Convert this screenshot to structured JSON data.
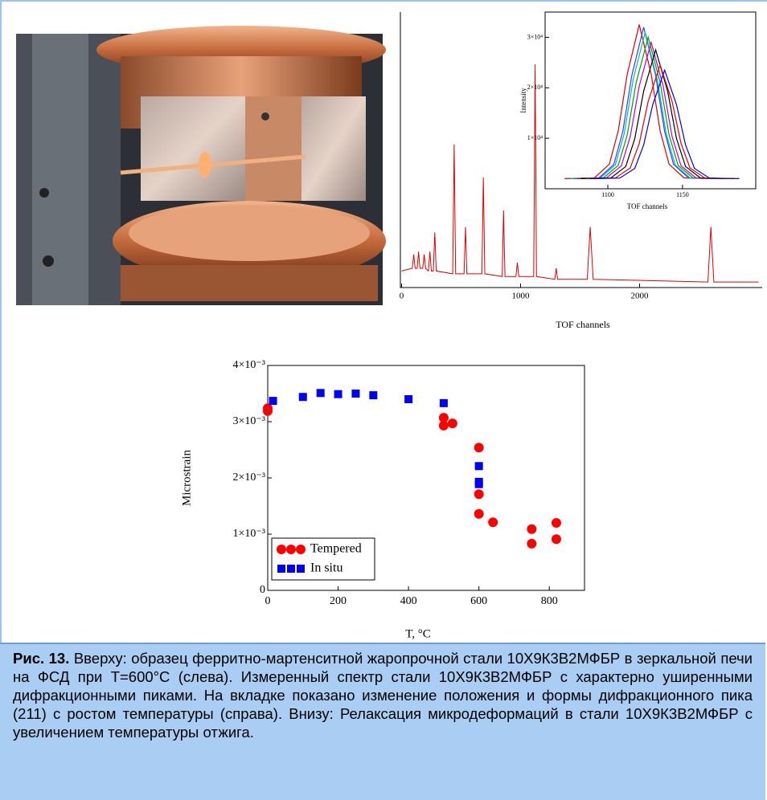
{
  "chart_data": [
    {
      "type": "line",
      "xlabel": "TOF channels",
      "xlim": [
        -10,
        3030
      ],
      "ylim": [
        0,
        100
      ],
      "xticks": [
        0,
        1000,
        2000
      ],
      "series": [
        {
          "color": "#e00000",
          "x": [
            0,
            90,
            102,
            114,
            131,
            143,
            155,
            178,
            190,
            202,
            226,
            238,
            250,
            267,
            279,
            291,
            430,
            442,
            454,
            525,
            537,
            549,
            675,
            687,
            699,
            845,
            857,
            869,
            961,
            973,
            985,
            1110,
            1122,
            1134,
            1287,
            1299,
            1311,
            1560,
            1585,
            1610,
            2574,
            2599,
            2624,
            3000
          ],
          "values": [
            6,
            7,
            12,
            7,
            7,
            13,
            7,
            7,
            12,
            7,
            6,
            13,
            6,
            6,
            20,
            6,
            5,
            52,
            5,
            5,
            22,
            5,
            5,
            40,
            5,
            4,
            28,
            4,
            4,
            9,
            4,
            4,
            81,
            4,
            3,
            7,
            3,
            3,
            22,
            3,
            2,
            22,
            2,
            2
          ]
        }
      ]
    },
    {
      "type": "line",
      "xlabel": "TOF channels",
      "ylabel": "Intensity",
      "xlim": [
        1058,
        1199
      ],
      "ylim": [
        0,
        35000
      ],
      "xticks": [
        1100,
        1150
      ],
      "yticks": [
        {
          "value": 10000,
          "label": "1×10⁴"
        },
        {
          "value": 20000,
          "label": "2×10⁴"
        },
        {
          "value": 30000,
          "label": "3×10⁴"
        }
      ],
      "series": [
        {
          "color": "#e00000",
          "x": [
            1071,
            1091,
            1101,
            1107,
            1113,
            1121,
            1129,
            1135,
            1141,
            1151,
            1171
          ],
          "values": [
            2000,
            2150,
            4870,
            11460,
            22740,
            32500,
            22740,
            11460,
            4870,
            2150,
            2000
          ]
        },
        {
          "color": "#3a3aff",
          "x": [
            1074,
            1094,
            1104,
            1110,
            1116,
            1124,
            1132,
            1138,
            1144,
            1154,
            1174
          ],
          "values": [
            2000,
            2150,
            4820,
            11300,
            22400,
            32000,
            22400,
            11300,
            4820,
            2150,
            2000
          ]
        },
        {
          "color": "#00b8c0",
          "x": [
            1075,
            1095,
            1105,
            1111,
            1117,
            1125,
            1133,
            1139,
            1145,
            1155,
            1175
          ],
          "values": [
            2000,
            2150,
            4730,
            10990,
            21720,
            31000,
            21720,
            10990,
            4730,
            2150,
            2000
          ]
        },
        {
          "color": "#00a000",
          "x": [
            1077,
            1097,
            1107,
            1113,
            1119,
            1127,
            1135,
            1141,
            1147,
            1157,
            1177
          ],
          "values": [
            2000,
            2140,
            4630,
            10680,
            21040,
            30000,
            21040,
            10680,
            4630,
            2140,
            2000
          ]
        },
        {
          "color": "#c000c0",
          "x": [
            1079,
            1099,
            1109,
            1115,
            1121,
            1129,
            1137,
            1143,
            1149,
            1159,
            1179
          ],
          "values": [
            2000,
            2140,
            4540,
            10370,
            20360,
            29000,
            20360,
            10370,
            4540,
            2140,
            2000
          ]
        },
        {
          "color": "#000000",
          "x": [
            1082,
            1102,
            1112,
            1118,
            1124,
            1132,
            1140,
            1146,
            1152,
            1162,
            1182
          ],
          "values": [
            2000,
            2130,
            4400,
            9900,
            19340,
            27500,
            19340,
            9900,
            4400,
            2130,
            2000
          ]
        },
        {
          "color": "#e00000",
          "x": [
            1085,
            1105,
            1115,
            1121,
            1127,
            1135,
            1143,
            1149,
            1155,
            1165,
            1185
          ],
          "values": [
            2000,
            2110,
            4120,
            8980,
            17300,
            24500,
            17300,
            8980,
            4120,
            2110,
            2000
          ]
        },
        {
          "color": "#0000e0",
          "x": [
            1088,
            1108,
            1118,
            1124,
            1130,
            1138,
            1146,
            1152,
            1158,
            1168,
            1188
          ],
          "values": [
            2000,
            2110,
            4020,
            8670,
            16620,
            23500,
            16620,
            8670,
            4020,
            2110,
            2000
          ]
        }
      ]
    },
    {
      "type": "scatter",
      "xlabel": "T, °C",
      "ylabel": "Microstrain",
      "xlim": [
        0,
        900
      ],
      "ylim": [
        0,
        0.004
      ],
      "xticks": [
        0,
        200,
        400,
        600,
        800
      ],
      "yticks": [
        0,
        {
          "value": 0.001,
          "label": "1×10⁻³"
        },
        {
          "value": 0.002,
          "label": "2×10⁻³"
        },
        {
          "value": 0.003,
          "label": "3×10⁻³"
        },
        {
          "value": 0.004,
          "label": "4×10⁻³"
        }
      ],
      "legend": "lower left",
      "series": [
        {
          "name": "Tempered",
          "color": "#ff0000",
          "marker": "circle",
          "x": [
            0,
            0,
            500,
            500,
            525,
            600,
            600,
            600,
            640,
            750,
            750,
            820,
            820
          ],
          "values": [
            0.00324,
            0.00319,
            0.00307,
            0.00293,
            0.00297,
            0.00254,
            0.00171,
            0.00136,
            0.00121,
            0.00109,
            0.00083,
            0.0012,
            0.00091
          ]
        },
        {
          "name": "In situ",
          "color": "#0000ff",
          "marker": "square",
          "x": [
            15,
            100,
            150,
            200,
            250,
            300,
            400,
            500,
            600,
            600,
            600
          ],
          "values": [
            0.00337,
            0.00344,
            0.00351,
            0.00349,
            0.0035,
            0.00347,
            0.0034,
            0.00333,
            0.00221,
            0.00193,
            0.00189
          ]
        }
      ]
    }
  ],
  "caption": {
    "label": "Рис. 13.",
    "text": "Вверху: образец ферритно-мартенситной жаропрочной стали 10Х9К3В2МФБР в зеркальной печи на ФСД при T=600°C (слева). Измеренный спектр стали 10Х9К3В2МФБР с характерно уширенными дифракционными пиками. На вкладке показано изменение положения и формы дифракционного пика (211) с ростом температуры (справа). Внизу: Релаксация микродеформаций в стали 10Х9К3В2МФБР с увеличением температуры отжига."
  }
}
